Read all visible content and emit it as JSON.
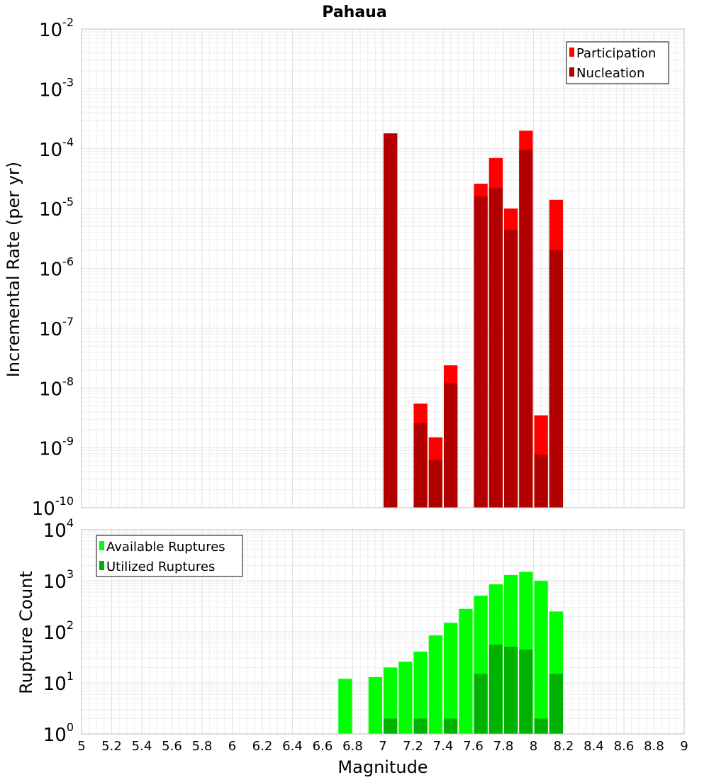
{
  "chart_data": [
    {
      "type": "bar",
      "title": "Pahaua",
      "xlabel": "Magnitude",
      "ylabel": "Incremental Rate (per yr)",
      "yscale": "log",
      "xlim": [
        5,
        9
      ],
      "ylim_exponents": [
        -10,
        -2
      ],
      "legend_position": "top-right",
      "bar_width": 0.1,
      "series": [
        {
          "name": "Participation",
          "color": "#ff0000",
          "x": [
            7.05,
            7.25,
            7.35,
            7.45,
            7.65,
            7.75,
            7.85,
            7.95,
            8.05,
            8.15
          ],
          "values": [
            0.00018,
            5.5e-09,
            1.5e-09,
            2.4e-08,
            2.6e-05,
            7e-05,
            1e-05,
            0.0002,
            3.5e-09,
            1.4e-05
          ]
        },
        {
          "name": "Nucleation",
          "color": "#b20000",
          "x": [
            7.05,
            7.25,
            7.35,
            7.45,
            7.65,
            7.75,
            7.85,
            7.95,
            8.05,
            8.15
          ],
          "values": [
            0.00018,
            2.6e-09,
            6.2e-10,
            1.2e-08,
            1.6e-05,
            2.2e-05,
            4.4e-06,
            9.5e-05,
            7.7e-10,
            2e-06
          ]
        }
      ]
    },
    {
      "type": "bar",
      "title": "",
      "xlabel": "Magnitude",
      "ylabel": "Rupture Count",
      "yscale": "log",
      "xlim": [
        5,
        9
      ],
      "ylim_exponents": [
        0,
        4
      ],
      "legend_position": "top-left",
      "bar_width": 0.1,
      "series": [
        {
          "name": "Available Ruptures",
          "color": "#00ff00",
          "x": [
            6.75,
            6.95,
            7.05,
            7.15,
            7.25,
            7.35,
            7.45,
            7.55,
            7.65,
            7.75,
            7.85,
            7.95,
            8.05,
            8.15,
            8.25
          ],
          "values": [
            12,
            13,
            20,
            26,
            41,
            85,
            150,
            280,
            510,
            850,
            1300,
            1500,
            1000,
            250,
            1
          ]
        },
        {
          "name": "Utilized Ruptures",
          "color": "#00b200",
          "x": [
            7.05,
            7.25,
            7.35,
            7.45,
            7.65,
            7.75,
            7.85,
            7.95,
            8.05,
            8.15
          ],
          "values": [
            2,
            2,
            1,
            2,
            15,
            56,
            51,
            45,
            2,
            15
          ]
        }
      ]
    }
  ],
  "x_ticks": [
    "5",
    "5.2",
    "5.4",
    "5.6",
    "5.8",
    "6",
    "6.2",
    "6.4",
    "6.6",
    "6.8",
    "7",
    "7.2",
    "7.4",
    "7.6",
    "7.8",
    "8",
    "8.2",
    "8.4",
    "8.6",
    "8.8",
    "9"
  ],
  "y_tick_base": "10"
}
